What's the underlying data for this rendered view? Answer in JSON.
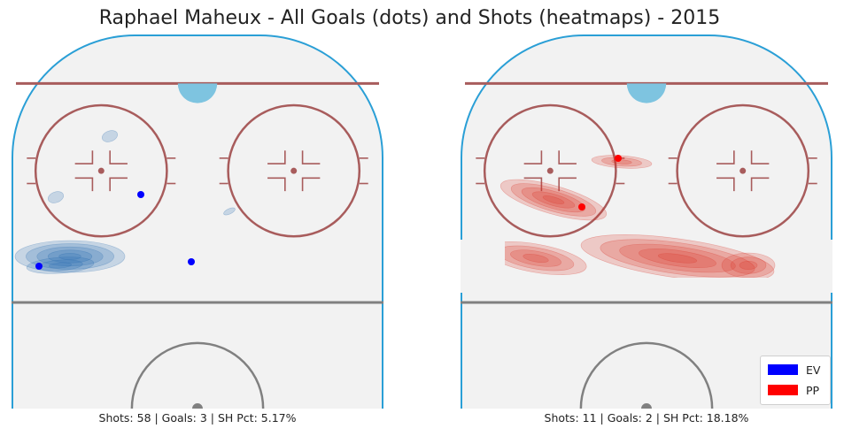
{
  "title": "Raphael Maheux - All Goals (dots) and Shots (heatmaps) - 2015",
  "panels": [
    {
      "caption": "Shots: 58 | Goals: 3 | SH Pct: 5.17%"
    },
    {
      "caption": "Shots: 11 | Goals: 2 | SH Pct: 18.18%"
    }
  ],
  "legend": [
    {
      "label": "EV",
      "color": "#0000ff"
    },
    {
      "label": "PP",
      "color": "#ff0000"
    }
  ],
  "colors": {
    "rink_fill": "#f2f2f2",
    "boards": "#2a9fd6",
    "goal_line": "#a85c5c",
    "faceoff": "#a85c5c",
    "blue_line": "#808080",
    "crease": "#7ec4e0",
    "ev_heat": "#2b6cb0",
    "pp_heat": "#d9362b"
  },
  "chart_data": [
    {
      "type": "scatter",
      "name": "EV",
      "heatmap": "shots",
      "goals": [
        {
          "x": 1,
          "y": 3
        },
        {
          "x": 5,
          "y": 14
        },
        {
          "x": 9,
          "y": 9
        }
      ],
      "shot_density_peaks": [
        {
          "x": 2.5,
          "y": 3,
          "level": 0.9
        },
        {
          "x": 1.5,
          "y": 16,
          "level": 0.2
        },
        {
          "x": 6.5,
          "y": 25,
          "level": 0.15
        },
        {
          "x": 12,
          "y": 13,
          "level": 0.12
        }
      ]
    },
    {
      "type": "scatter",
      "name": "PP",
      "heatmap": "shots",
      "goals": [
        {
          "x": 6,
          "y": 20
        },
        {
          "x": 7,
          "y": 11
        }
      ],
      "shot_density_peaks": [
        {
          "x": 3,
          "y": 13,
          "level": 0.8
        },
        {
          "x": 8,
          "y": 20,
          "level": 0.7
        },
        {
          "x": 11,
          "y": 1,
          "level": 0.95
        },
        {
          "x": 2,
          "y": 0,
          "level": 0.5
        },
        {
          "x": 16,
          "y": 0,
          "level": 0.55
        }
      ]
    }
  ]
}
